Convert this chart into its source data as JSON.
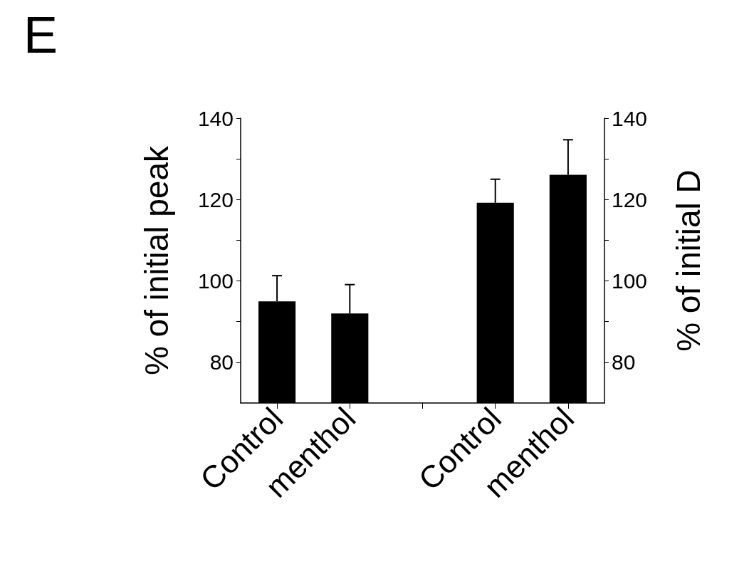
{
  "chart_data": {
    "type": "bar",
    "title": "E",
    "ylabel": "% of initial peak",
    "y2label": "% of initial D",
    "categories": [
      "Control",
      "menthol",
      null,
      "Control",
      "menthol"
    ],
    "series": [
      {
        "color": "#000000",
        "values": [
          95,
          92,
          null,
          null,
          null
        ],
        "errors": [
          6.3,
          7.1,
          null,
          null,
          null
        ]
      },
      {
        "color": "#000000",
        "axis": "y2",
        "values": [
          null,
          null,
          null,
          119.2,
          126.1
        ],
        "errors": [
          null,
          null,
          null,
          5.8,
          8.6
        ]
      }
    ],
    "ylim": [
      70,
      140
    ],
    "yticks": [
      80,
      {
        "value": 90,
        "label": null
      },
      100,
      {
        "value": 110,
        "label": null
      },
      120,
      {
        "value": 130,
        "label": null
      },
      140
    ],
    "y2lim": [
      70,
      140
    ],
    "y2ticks": [
      80,
      {
        "value": 90,
        "label": null
      },
      100,
      {
        "value": 110,
        "label": null
      },
      120,
      {
        "value": 130,
        "label": null
      },
      140
    ],
    "grid": false
  }
}
